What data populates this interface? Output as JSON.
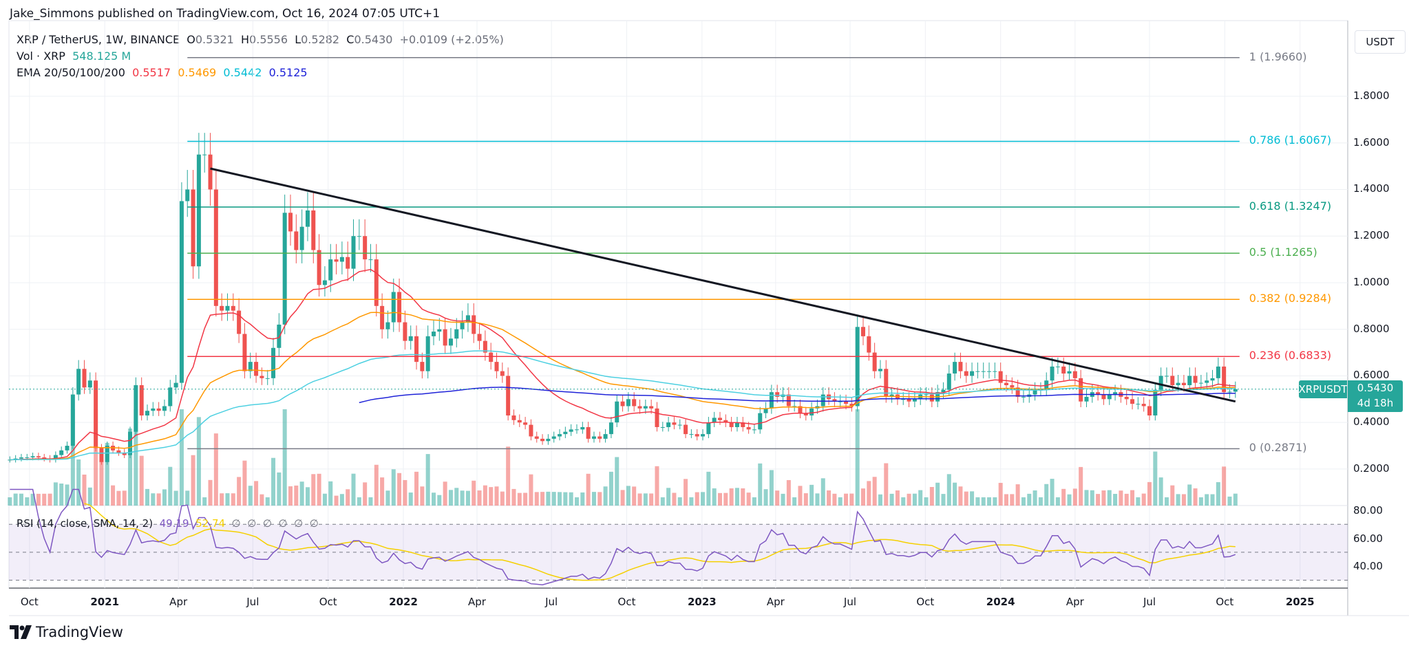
{
  "publisher": "Jake_Simmons published on TradingView.com, Oct 16, 2024 07:05 UTC+1",
  "symbol": {
    "title": "XRP / TetherUS, 1W, BINANCE",
    "o_label": "O",
    "o": "0.5321",
    "h_label": "H",
    "h": "0.5556",
    "l_label": "L",
    "l": "0.5282",
    "c_label": "C",
    "c": "0.5430",
    "change": "+0.0109 (+2.05%)"
  },
  "volume": {
    "label": "Vol · XRP",
    "value": "548.125 M"
  },
  "ema": {
    "label": "EMA 20/50/100/200",
    "values": [
      "0.5517",
      "0.5469",
      "0.5442",
      "0.5125"
    ],
    "colors": [
      "#f23645",
      "#ff9800",
      "#4dd0e1",
      "#1e22d8"
    ]
  },
  "currency_button": "USDT",
  "last_price": {
    "symbol": "XRPUSDT",
    "value": "0.5430",
    "countdown": "4d 18h"
  },
  "rsi": {
    "label": "RSI (14, close, SMA, 14, 2)",
    "value": "49.19",
    "sma": "52.74",
    "empty": [
      "∅",
      "∅",
      "∅",
      "∅",
      "∅",
      "∅"
    ],
    "ticks": [
      "80.00",
      "60.00",
      "40.00"
    ]
  },
  "fib_levels": [
    {
      "label": "1 (1.9660)",
      "price": 1.966,
      "color": "#787b86"
    },
    {
      "label": "0.786 (1.6067)",
      "price": 1.6067,
      "color": "#00bcd4"
    },
    {
      "label": "0.618 (1.3247)",
      "price": 1.3247,
      "color": "#089981"
    },
    {
      "label": "0.5 (1.1265)",
      "price": 1.1265,
      "color": "#4caf50"
    },
    {
      "label": "0.382 (0.9284)",
      "price": 0.9284,
      "color": "#ff9800"
    },
    {
      "label": "0.236 (0.6833)",
      "price": 0.6833,
      "color": "#f23645"
    },
    {
      "label": "0 (0.2871)",
      "price": 0.2871,
      "color": "#787b86"
    }
  ],
  "footer": "TradingView",
  "chart_data": {
    "type": "candlestick",
    "interval": "1W",
    "first_week": "2020-08-31",
    "price_ticks": [
      "1.8000",
      "1.6000",
      "1.4000",
      "1.2000",
      "1.0000",
      "0.8000",
      "0.6000",
      "0.4000",
      "0.2000"
    ],
    "time_ticks": [
      {
        "label": "Oct",
        "date": "2020-10-01"
      },
      {
        "label": "2021",
        "date": "2021-01-01",
        "year": true
      },
      {
        "label": "Apr",
        "date": "2021-04-01"
      },
      {
        "label": "Jul",
        "date": "2021-07-01"
      },
      {
        "label": "Oct",
        "date": "2021-10-01"
      },
      {
        "label": "2022",
        "date": "2022-01-01",
        "year": true
      },
      {
        "label": "Apr",
        "date": "2022-04-01"
      },
      {
        "label": "Jul",
        "date": "2022-07-01"
      },
      {
        "label": "Oct",
        "date": "2022-10-01"
      },
      {
        "label": "2023",
        "date": "2023-01-01",
        "year": true
      },
      {
        "label": "Apr",
        "date": "2023-04-01"
      },
      {
        "label": "Jul",
        "date": "2023-07-01"
      },
      {
        "label": "Oct",
        "date": "2023-10-01"
      },
      {
        "label": "2024",
        "date": "2024-01-01",
        "year": true
      },
      {
        "label": "Apr",
        "date": "2024-04-01"
      },
      {
        "label": "Jul",
        "date": "2024-07-01"
      },
      {
        "label": "Oct",
        "date": "2024-10-01"
      },
      {
        "label": "2025",
        "date": "2025-01-01",
        "year": true
      }
    ],
    "trendline": {
      "from": {
        "date": "2021-05-10",
        "price": 1.49
      },
      "to": {
        "date": "2024-10-14",
        "price": 0.49
      },
      "color": "#131722"
    },
    "up_color": "#26a69a",
    "down_color": "#ef5350",
    "closes": [
      0.24,
      0.24,
      0.245,
      0.25,
      0.25,
      0.255,
      0.25,
      0.245,
      0.24,
      0.26,
      0.28,
      0.3,
      0.52,
      0.63,
      0.55,
      0.58,
      0.29,
      0.23,
      0.3,
      0.28,
      0.27,
      0.26,
      0.36,
      0.56,
      0.43,
      0.45,
      0.46,
      0.45,
      0.47,
      0.55,
      0.57,
      1.35,
      1.4,
      1.07,
      1.55,
      1.55,
      1.4,
      0.9,
      0.88,
      0.9,
      0.88,
      0.78,
      0.62,
      0.66,
      0.6,
      0.59,
      0.59,
      0.72,
      0.82,
      1.3,
      1.22,
      1.14,
      1.24,
      1.31,
      1.14,
      0.99,
      1.01,
      1.1,
      1.09,
      1.11,
      1.06,
      1.2,
      1.2,
      1.1,
      1.1,
      0.9,
      0.8,
      0.83,
      0.96,
      0.83,
      0.75,
      0.77,
      0.66,
      0.62,
      0.77,
      0.79,
      0.8,
      0.73,
      0.76,
      0.8,
      0.83,
      0.86,
      0.78,
      0.75,
      0.7,
      0.66,
      0.62,
      0.6,
      0.43,
      0.41,
      0.4,
      0.39,
      0.34,
      0.33,
      0.32,
      0.33,
      0.34,
      0.35,
      0.36,
      0.37,
      0.37,
      0.38,
      0.33,
      0.34,
      0.33,
      0.35,
      0.4,
      0.49,
      0.47,
      0.5,
      0.47,
      0.46,
      0.47,
      0.46,
      0.38,
      0.38,
      0.4,
      0.39,
      0.39,
      0.35,
      0.35,
      0.34,
      0.35,
      0.4,
      0.42,
      0.41,
      0.4,
      0.38,
      0.4,
      0.38,
      0.37,
      0.37,
      0.44,
      0.46,
      0.53,
      0.51,
      0.52,
      0.47,
      0.47,
      0.44,
      0.43,
      0.46,
      0.47,
      0.52,
      0.5,
      0.49,
      0.49,
      0.48,
      0.47,
      0.81,
      0.77,
      0.7,
      0.62,
      0.63,
      0.51,
      0.52,
      0.5,
      0.5,
      0.49,
      0.5,
      0.52,
      0.52,
      0.49,
      0.53,
      0.54,
      0.61,
      0.66,
      0.62,
      0.6,
      0.62,
      0.62,
      0.62,
      0.62,
      0.62,
      0.57,
      0.56,
      0.55,
      0.51,
      0.51,
      0.52,
      0.54,
      0.54,
      0.58,
      0.64,
      0.64,
      0.61,
      0.62,
      0.59,
      0.49,
      0.51,
      0.53,
      0.52,
      0.5,
      0.52,
      0.53,
      0.51,
      0.5,
      0.48,
      0.48,
      0.47,
      0.43,
      0.54,
      0.6,
      0.6,
      0.56,
      0.57,
      0.56,
      0.6,
      0.57,
      0.57,
      0.58,
      0.59,
      0.64,
      0.53,
      0.5321,
      0.543
    ]
  }
}
